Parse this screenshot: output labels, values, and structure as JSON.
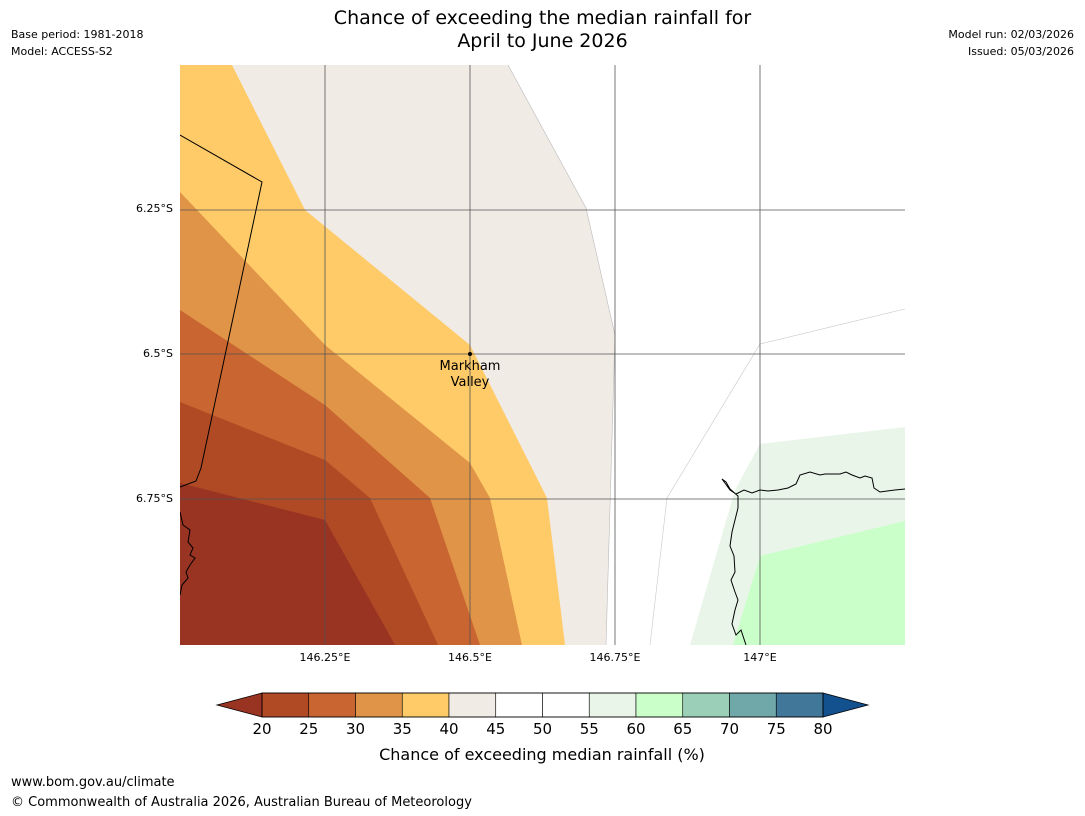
{
  "header": {
    "title_line1": "Chance of exceeding the median rainfall for",
    "title_line2": "April to June 2026",
    "base_period": "Base period: 1981-2018",
    "model": "Model: ACCESS-S2",
    "model_run": "Model run: 02/03/2026",
    "issued": "Issued: 05/03/2026"
  },
  "map": {
    "latitude_labels": [
      "6.25°S",
      "6.5°S",
      "6.75°S"
    ],
    "longitude_labels": [
      "146.25°E",
      "146.5°E",
      "146.75°E",
      "147°E"
    ],
    "place": {
      "name_line1": "Markham",
      "name_line2": "Valley"
    }
  },
  "colorbar": {
    "ticks": [
      "20",
      "25",
      "30",
      "35",
      "40",
      "45",
      "50",
      "55",
      "60",
      "65",
      "70",
      "75",
      "80"
    ],
    "label": "Chance of exceeding median rainfall (%)",
    "colors": {
      "below_20": "#993322",
      "20_25": "#b04a25",
      "25_30": "#c96531",
      "30_35": "#e09448",
      "35_40": "#ffcb68",
      "40_45": "#f0ebe5",
      "45_50": "#ffffff",
      "50_55": "#ffffff",
      "55_60": "#e9f5e9",
      "60_65": "#caffca",
      "65_70": "#9ccfb8",
      "70_75": "#70a7a8",
      "75_80": "#417799",
      "above_80": "#13508e"
    }
  },
  "footer": {
    "url": "www.bom.gov.au/climate",
    "copyright": "© Commonwealth of Australia 2026, Australian Bureau of Meteorology"
  }
}
